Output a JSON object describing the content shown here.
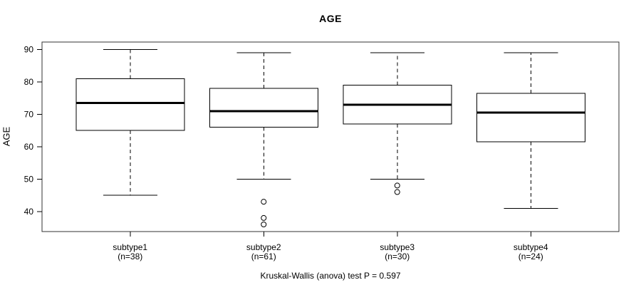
{
  "title": "AGE",
  "y_axis_title": "AGE",
  "caption": "Kruskal-Wallis (anova) test P = 0.597",
  "colors": {
    "line": "#000000",
    "frame": "#333333",
    "box_fill": "#ffffff",
    "background": "#ffffff",
    "text": "#000000"
  },
  "chart_data": {
    "type": "boxplot",
    "title": "AGE",
    "xlabel": "",
    "ylabel": "AGE",
    "ylim": [
      33.8,
      92.3
    ],
    "yticks": [
      40,
      50,
      60,
      70,
      80,
      90
    ],
    "grid": false,
    "legend": "none",
    "caption": "Kruskal-Wallis (anova) test P = 0.597",
    "groups": [
      {
        "label": "subtype1",
        "n_label": "(n=38)",
        "n": 38,
        "whisker_low": 45,
        "q1": 65,
        "median": 73.5,
        "q3": 81,
        "whisker_high": 90,
        "outliers": []
      },
      {
        "label": "subtype2",
        "n_label": "(n=61)",
        "n": 61,
        "whisker_low": 50,
        "q1": 66,
        "median": 71,
        "q3": 78,
        "whisker_high": 89,
        "outliers": [
          43,
          38,
          36
        ]
      },
      {
        "label": "subtype3",
        "n_label": "(n=30)",
        "n": 30,
        "whisker_low": 50,
        "q1": 67,
        "median": 73,
        "q3": 79,
        "whisker_high": 89,
        "outliers": [
          48,
          46
        ]
      },
      {
        "label": "subtype4",
        "n_label": "(n=24)",
        "n": 24,
        "whisker_low": 41,
        "q1": 61.5,
        "median": 70.5,
        "q3": 76.5,
        "whisker_high": 89,
        "outliers": []
      }
    ]
  }
}
